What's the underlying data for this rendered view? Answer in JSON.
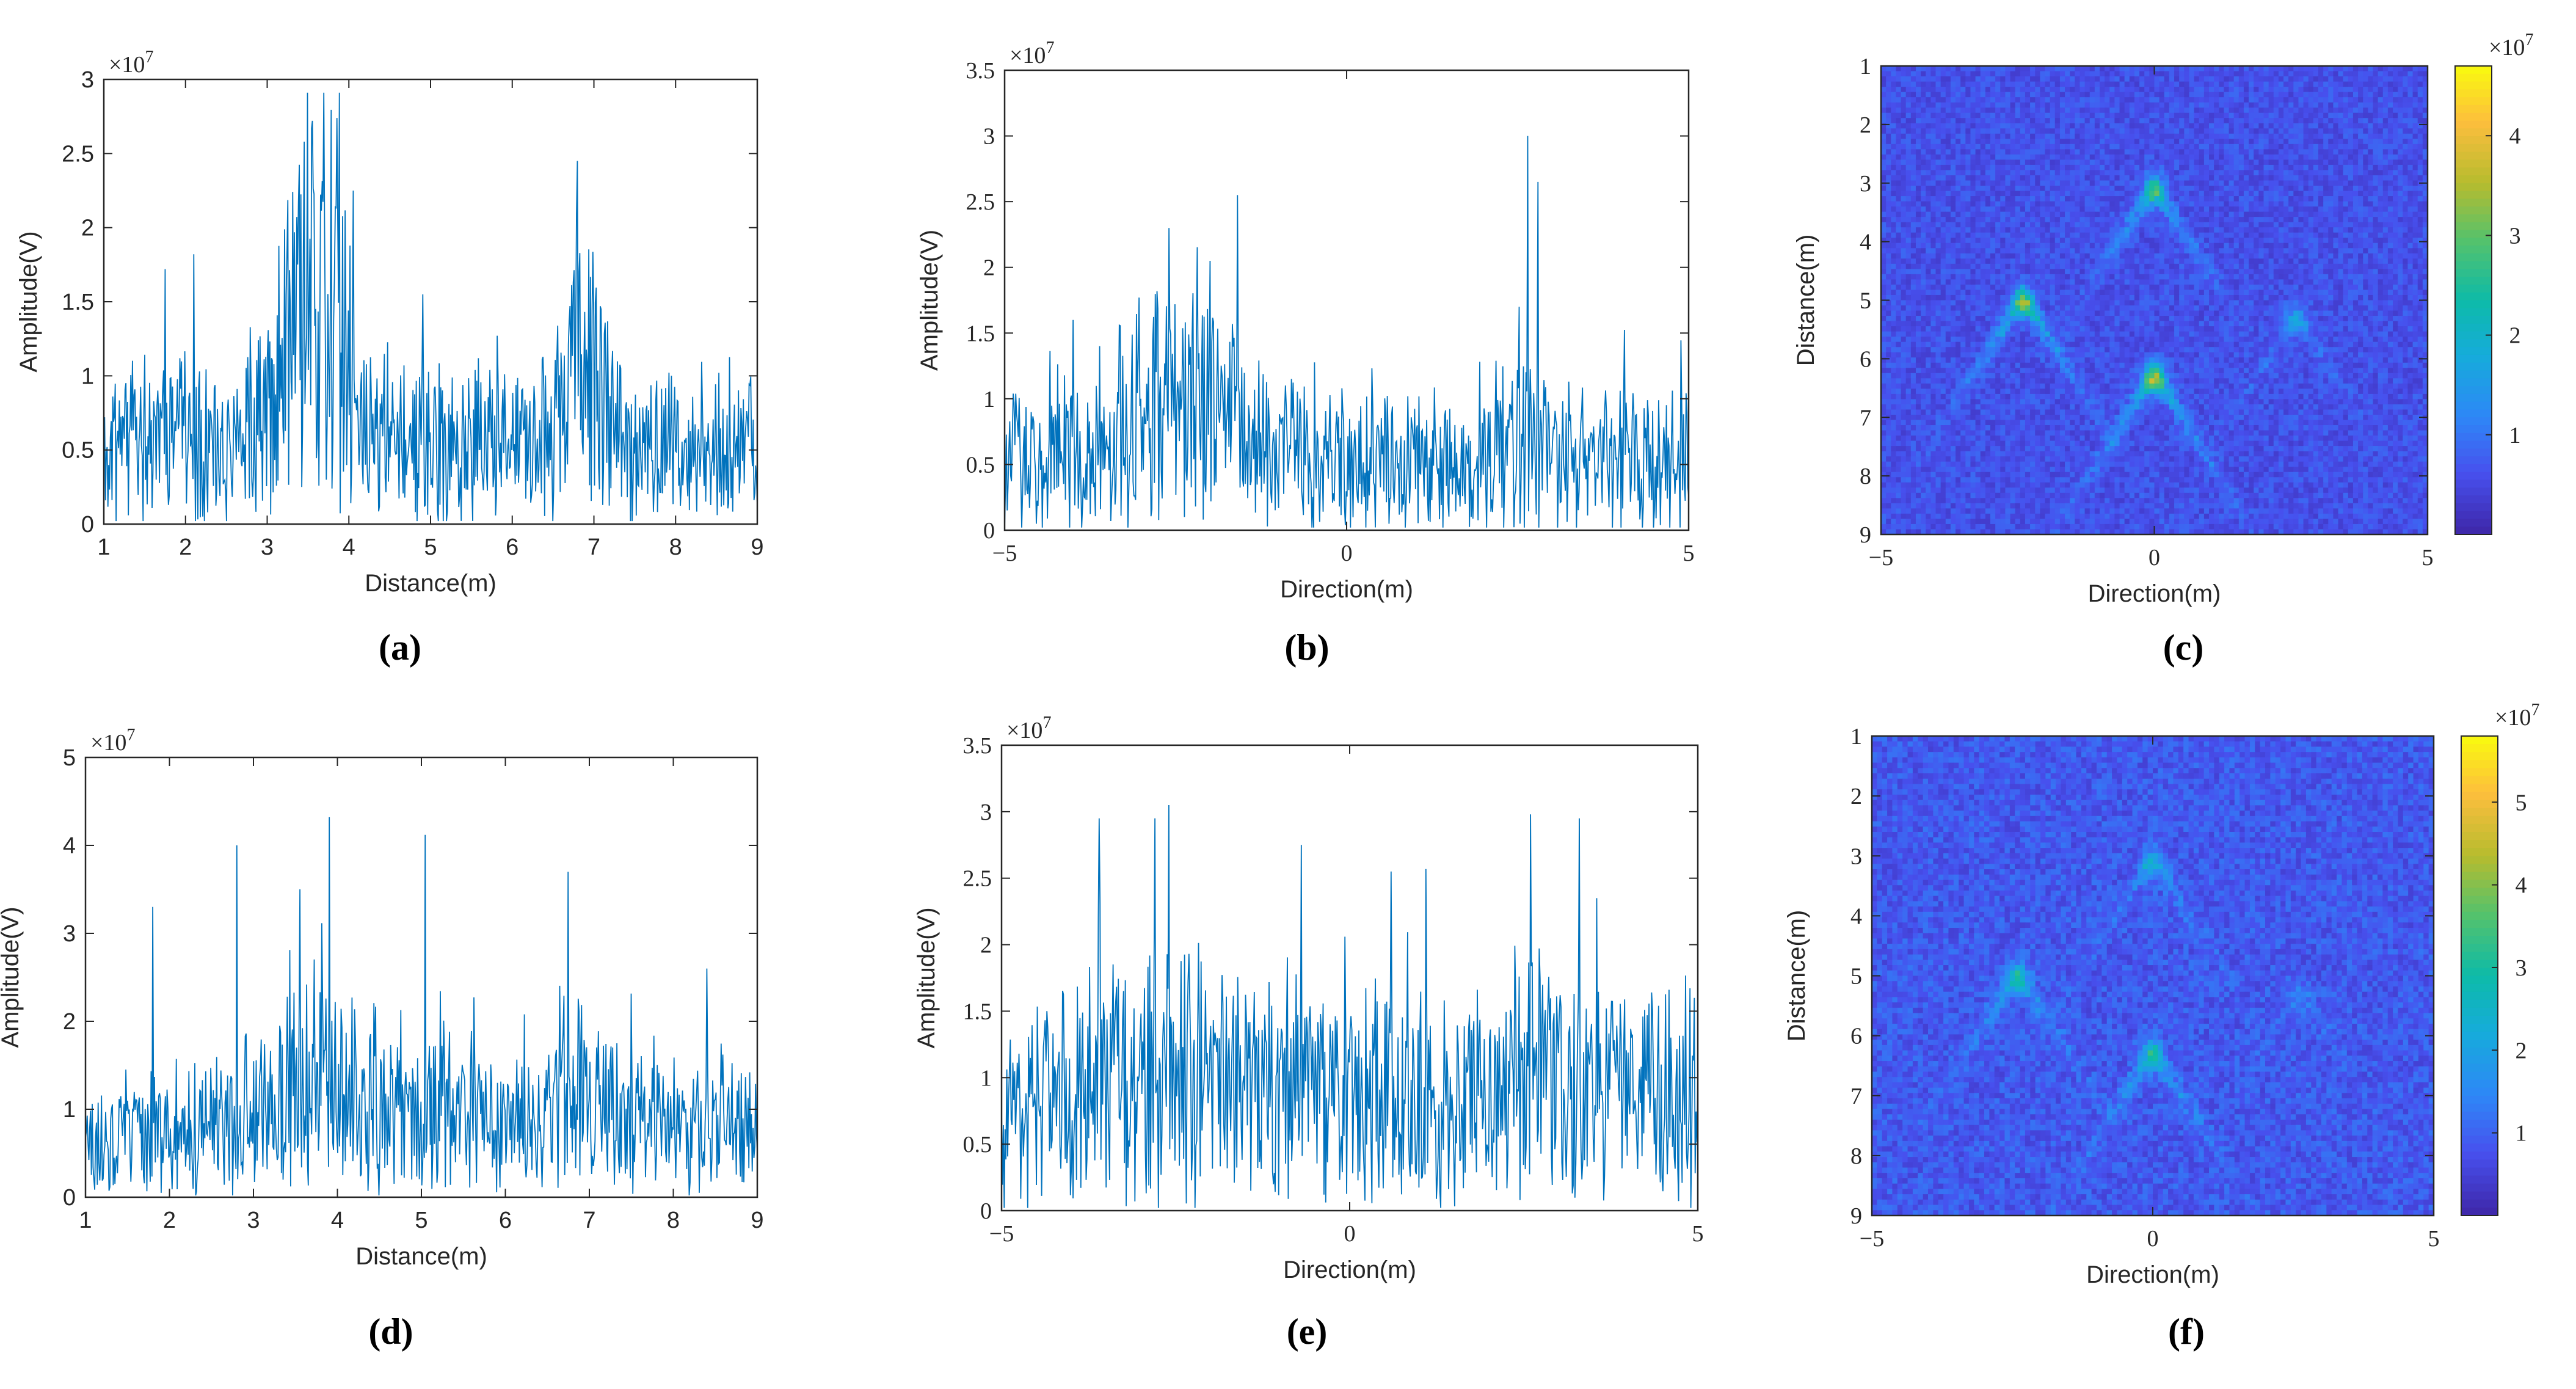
{
  "chart_data": [
    {
      "id": "a",
      "type": "line",
      "panel_label": "(a)",
      "xlabel": "Distance(m)",
      "ylabel": "Amplitude(V)",
      "exponent": "×10^7",
      "xlim": [
        1,
        9
      ],
      "ylim": [
        0,
        3
      ],
      "xticks": [
        1,
        2,
        3,
        4,
        5,
        6,
        7,
        8,
        9
      ],
      "yticks": [
        0,
        0.5,
        1,
        1.5,
        2,
        2.5,
        3
      ],
      "xtick_labels": [
        "1",
        "2",
        "3",
        "4",
        "5",
        "6",
        "7",
        "8",
        "9"
      ],
      "ytick_labels": [
        "0",
        "0.5",
        "1",
        "1.5",
        "2",
        "2.5",
        "3"
      ],
      "series": [
        {
          "name": "amplitude",
          "color": "#0072BD",
          "n_points": 800,
          "seed": 11,
          "noise": 0.35,
          "envelope": [
            [
              1,
              0.75
            ],
            [
              1.5,
              0.85
            ],
            [
              2.0,
              0.85
            ],
            [
              2.5,
              0.8
            ],
            [
              3.0,
              1.2
            ],
            [
              3.3,
              1.9
            ],
            [
              3.6,
              2.0
            ],
            [
              3.9,
              1.9
            ],
            [
              4.1,
              0.9
            ],
            [
              4.5,
              0.85
            ],
            [
              5.0,
              0.8
            ],
            [
              5.5,
              0.75
            ],
            [
              6.0,
              0.75
            ],
            [
              6.5,
              0.85
            ],
            [
              6.8,
              1.7
            ],
            [
              7.0,
              1.6
            ],
            [
              7.3,
              0.8
            ],
            [
              8.0,
              0.7
            ],
            [
              9,
              0.7
            ]
          ],
          "spikes": [
            [
              3.55,
              2.72
            ],
            [
              3.85,
              2.74
            ],
            [
              3.45,
              2.58
            ],
            [
              6.8,
              2.45
            ],
            [
              4.05,
              2.25
            ],
            [
              1.75,
              1.72
            ],
            [
              2.1,
              1.82
            ]
          ]
        }
      ]
    },
    {
      "id": "b",
      "type": "line",
      "panel_label": "(b)",
      "xlabel": "Direction(m)",
      "ylabel": "Amplitude(V)",
      "exponent": "×10^7",
      "xlim": [
        -5,
        5
      ],
      "ylim": [
        0,
        3.5
      ],
      "xticks": [
        -5,
        0,
        5
      ],
      "yticks": [
        0,
        0.5,
        1,
        1.5,
        2,
        2.5,
        3,
        3.5
      ],
      "xtick_labels": [
        "−5",
        "0",
        "5"
      ],
      "ytick_labels": [
        "0",
        "0.5",
        "1",
        "1.5",
        "2",
        "2.5",
        "3",
        "3.5"
      ],
      "series": [
        {
          "name": "amplitude",
          "color": "#0072BD",
          "n_points": 800,
          "seed": 23,
          "noise": 0.35,
          "envelope": [
            [
              -5,
              0.8
            ],
            [
              -4,
              0.85
            ],
            [
              -3.2,
              0.9
            ],
            [
              -2.7,
              1.6
            ],
            [
              -2.3,
              1.4
            ],
            [
              -1.9,
              1.4
            ],
            [
              -1.5,
              0.9
            ],
            [
              -0.5,
              0.8
            ],
            [
              0,
              0.75
            ],
            [
              1,
              0.8
            ],
            [
              2.0,
              0.8
            ],
            [
              2.5,
              1.1
            ],
            [
              2.7,
              1.3
            ],
            [
              3.0,
              0.85
            ],
            [
              4,
              0.8
            ],
            [
              5,
              0.8
            ]
          ],
          "spikes": [
            [
              2.65,
              3.0
            ],
            [
              2.8,
              2.65
            ],
            [
              -1.6,
              2.55
            ],
            [
              -2.6,
              2.3
            ],
            [
              -2.0,
              2.05
            ],
            [
              -4.0,
              1.6
            ]
          ]
        }
      ]
    },
    {
      "id": "c",
      "type": "heatmap",
      "panel_label": "(c)",
      "xlabel": "Direction(m)",
      "ylabel": "Distance(m)",
      "exponent": "×10^7",
      "xlim": [
        -5,
        5
      ],
      "ylim": [
        1,
        9
      ],
      "y_reversed": true,
      "xticks": [
        -5,
        0,
        5
      ],
      "yticks": [
        1,
        2,
        3,
        4,
        5,
        6,
        7,
        8,
        9
      ],
      "xtick_labels": [
        "−5",
        "0",
        "5"
      ],
      "ytick_labels": [
        "1",
        "2",
        "3",
        "4",
        "5",
        "6",
        "7",
        "8",
        "9"
      ],
      "colorbar": {
        "ticks": [
          1,
          2,
          3,
          4
        ],
        "tick_labels": [
          "1",
          "2",
          "3",
          "4"
        ],
        "max": 4.7,
        "colormap": "parula"
      },
      "seed": 31,
      "background": 0.6,
      "hyperbolas": [
        {
          "x": 0.0,
          "y": 3.1,
          "strength": 1.3
        },
        {
          "x": -2.4,
          "y": 5.0,
          "strength": 1.5
        },
        {
          "x": 0.0,
          "y": 6.3,
          "strength": 1.7
        },
        {
          "x": 2.6,
          "y": 5.3,
          "strength": 0.6
        }
      ]
    },
    {
      "id": "d",
      "type": "line",
      "panel_label": "(d)",
      "xlabel": "Distance(m)",
      "ylabel": "Amplitude(V)",
      "exponent": "×10^7",
      "xlim": [
        1,
        9
      ],
      "ylim": [
        0,
        5
      ],
      "xticks": [
        1,
        2,
        3,
        4,
        5,
        6,
        7,
        8,
        9
      ],
      "yticks": [
        0,
        1,
        2,
        3,
        4,
        5
      ],
      "xtick_labels": [
        "1",
        "2",
        "3",
        "4",
        "5",
        "6",
        "7",
        "8",
        "9"
      ],
      "ytick_labels": [
        "0",
        "1",
        "2",
        "3",
        "4",
        "5"
      ],
      "series": [
        {
          "name": "amplitude",
          "color": "#0072BD",
          "n_points": 800,
          "seed": 47,
          "noise": 0.4,
          "envelope": [
            [
              1,
              1.0
            ],
            [
              2,
              1.1
            ],
            [
              3,
              1.3
            ],
            [
              3.5,
              1.9
            ],
            [
              4,
              1.8
            ],
            [
              4.5,
              1.4
            ],
            [
              5,
              1.3
            ],
            [
              6,
              1.2
            ],
            [
              6.5,
              1.2
            ],
            [
              6.8,
              2.1
            ],
            [
              7.0,
              1.9
            ],
            [
              7.4,
              1.3
            ],
            [
              8,
              1.2
            ],
            [
              9,
              1.1
            ]
          ],
          "spikes": [
            [
              3.9,
              4.32
            ],
            [
              5.05,
              4.12
            ],
            [
              2.8,
              4.0
            ],
            [
              6.75,
              3.7
            ],
            [
              1.8,
              3.3
            ],
            [
              3.55,
              3.5
            ],
            [
              8.4,
              2.6
            ]
          ]
        }
      ]
    },
    {
      "id": "e",
      "type": "line",
      "panel_label": "(e)",
      "xlabel": "Direction(m)",
      "ylabel": "Amplitude(V)",
      "exponent": "×10^7",
      "xlim": [
        -5,
        5
      ],
      "ylim": [
        0,
        3.5
      ],
      "xticks": [
        -5,
        0,
        5
      ],
      "yticks": [
        0,
        0.5,
        1,
        1.5,
        2,
        2.5,
        3,
        3.5
      ],
      "xtick_labels": [
        "−5",
        "0",
        "5"
      ],
      "ytick_labels": [
        "0",
        "0.5",
        "1",
        "1.5",
        "2",
        "2.5",
        "3",
        "3.5"
      ],
      "series": [
        {
          "name": "amplitude",
          "color": "#0072BD",
          "n_points": 800,
          "seed": 59,
          "noise": 0.45,
          "envelope": [
            [
              -5,
              1.2
            ],
            [
              -4,
              1.3
            ],
            [
              -3,
              1.4
            ],
            [
              -2.5,
              1.6
            ],
            [
              -2,
              1.4
            ],
            [
              -1,
              1.3
            ],
            [
              0,
              1.3
            ],
            [
              1,
              1.3
            ],
            [
              2,
              1.3
            ],
            [
              2.6,
              1.6
            ],
            [
              3,
              1.4
            ],
            [
              4,
              1.3
            ],
            [
              5,
              1.3
            ]
          ],
          "spikes": [
            [
              -2.6,
              3.05
            ],
            [
              -2.8,
              2.95
            ],
            [
              -3.6,
              2.95
            ],
            [
              2.6,
              2.98
            ],
            [
              3.3,
              2.95
            ],
            [
              -0.7,
              2.75
            ],
            [
              0.6,
              2.55
            ]
          ]
        }
      ]
    },
    {
      "id": "f",
      "type": "heatmap",
      "panel_label": "(f)",
      "xlabel": "Direction(m)",
      "ylabel": "Distance(m)",
      "exponent": "×10^7",
      "xlim": [
        -5,
        5
      ],
      "ylim": [
        1,
        9
      ],
      "y_reversed": true,
      "xticks": [
        -5,
        0,
        5
      ],
      "yticks": [
        1,
        2,
        3,
        4,
        5,
        6,
        7,
        8,
        9
      ],
      "xtick_labels": [
        "−5",
        "0",
        "5"
      ],
      "ytick_labels": [
        "1",
        "2",
        "3",
        "4",
        "5",
        "6",
        "7",
        "8",
        "9"
      ],
      "colorbar": {
        "ticks": [
          1,
          2,
          3,
          4,
          5
        ],
        "tick_labels": [
          "1",
          "2",
          "3",
          "4",
          "5"
        ],
        "max": 5.8,
        "colormap": "parula"
      },
      "seed": 73,
      "background": 0.85,
      "hyperbolas": [
        {
          "x": 0.0,
          "y": 3.1,
          "strength": 0.9
        },
        {
          "x": -2.4,
          "y": 5.0,
          "strength": 1.2
        },
        {
          "x": 0.0,
          "y": 6.3,
          "strength": 1.3
        },
        {
          "x": 2.6,
          "y": 5.3,
          "strength": 0.4
        }
      ]
    }
  ]
}
